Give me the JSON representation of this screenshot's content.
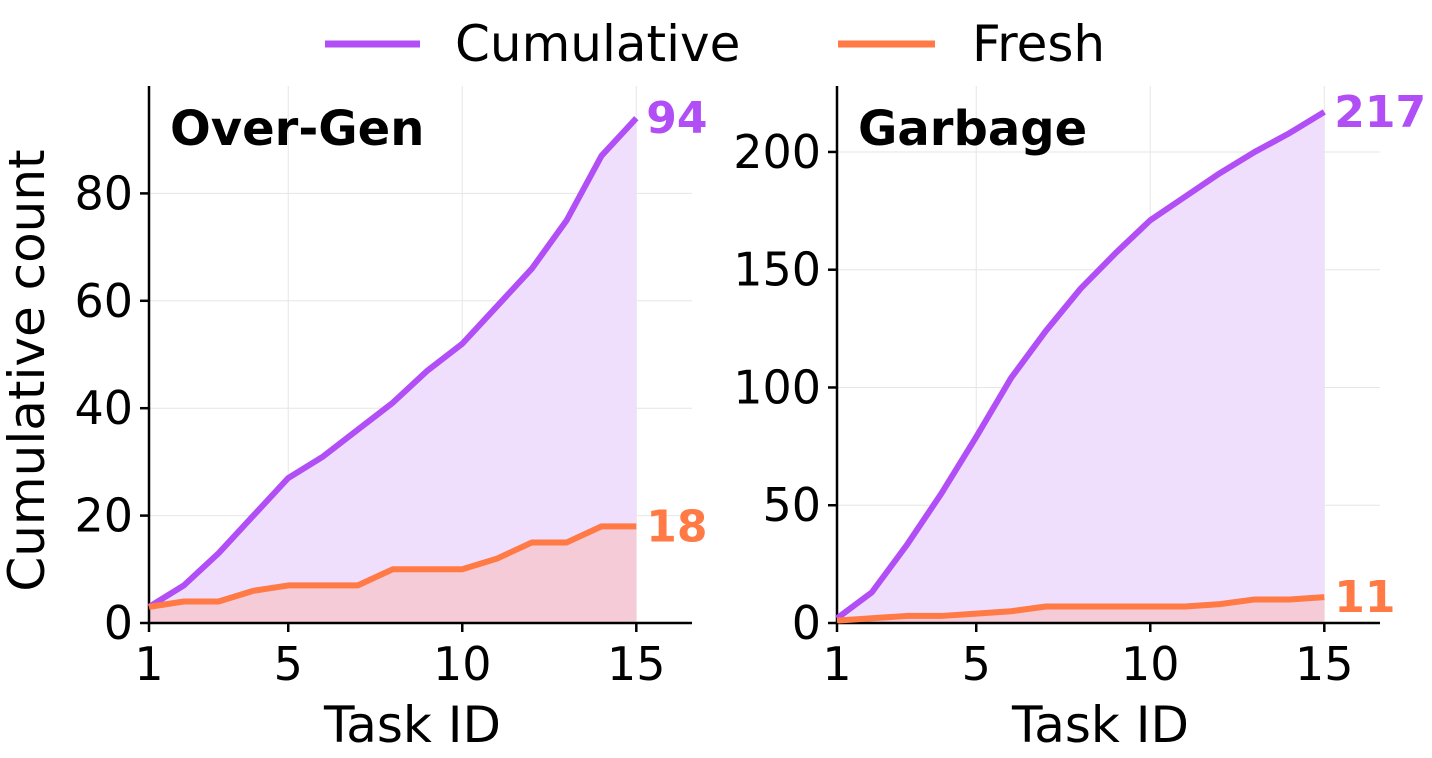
{
  "legend": {
    "items": [
      {
        "label": "Cumulative",
        "color": "#b14ef5"
      },
      {
        "label": "Fresh",
        "color": "#ff7a45"
      }
    ],
    "placement": "top-center"
  },
  "chart_data": [
    {
      "type": "area",
      "title": "Over-Gen",
      "xlabel": "Task ID",
      "ylabel": "Cumulative count",
      "xlim": [
        1,
        16.6
      ],
      "ylim": [
        0,
        100
      ],
      "xticks": [
        1,
        5,
        10,
        15
      ],
      "yticks": [
        0,
        20,
        40,
        60,
        80
      ],
      "grid": true,
      "x": [
        1,
        2,
        3,
        4,
        5,
        6,
        7,
        8,
        9,
        10,
        11,
        12,
        13,
        14,
        15
      ],
      "series": [
        {
          "name": "Cumulative",
          "color": "#b14ef5",
          "fill": "#f0dffc",
          "values": [
            3,
            7,
            13,
            20,
            27,
            31,
            36,
            41,
            47,
            52,
            59,
            66,
            75,
            87,
            94
          ],
          "end_label": "94"
        },
        {
          "name": "Fresh",
          "color": "#ff7a45",
          "fill": "#f6cbd8",
          "values": [
            3,
            4,
            4,
            6,
            7,
            7,
            7,
            10,
            10,
            10,
            12,
            15,
            15,
            18,
            18
          ],
          "end_label": "18"
        }
      ]
    },
    {
      "type": "area",
      "title": "Garbage",
      "xlabel": "Task ID",
      "ylabel": "",
      "xlim": [
        1,
        16.6
      ],
      "ylim": [
        0,
        228
      ],
      "xticks": [
        1,
        5,
        10,
        15
      ],
      "yticks": [
        0,
        50,
        100,
        150,
        200
      ],
      "grid": true,
      "x": [
        1,
        2,
        3,
        4,
        5,
        6,
        7,
        8,
        9,
        10,
        11,
        12,
        13,
        14,
        15
      ],
      "series": [
        {
          "name": "Cumulative",
          "color": "#b14ef5",
          "fill": "#f0dffc",
          "values": [
            2,
            13,
            33,
            55,
            79,
            104,
            124,
            142,
            157,
            171,
            181,
            191,
            200,
            208,
            217
          ],
          "end_label": "217"
        },
        {
          "name": "Fresh",
          "color": "#ff7a45",
          "fill": "#f6cbd8",
          "values": [
            1,
            2,
            3,
            3,
            4,
            5,
            7,
            7,
            7,
            7,
            7,
            8,
            10,
            10,
            11
          ],
          "end_label": "11"
        }
      ]
    }
  ]
}
